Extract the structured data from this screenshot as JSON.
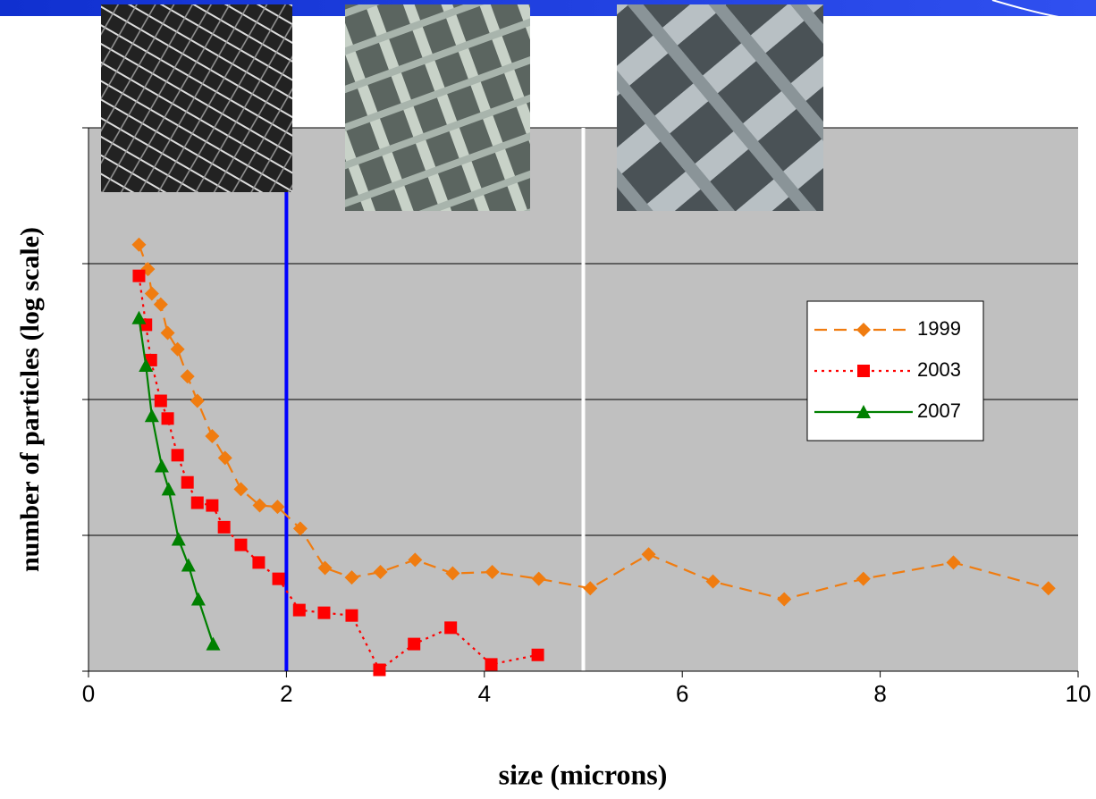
{
  "chart_data": {
    "type": "line",
    "xlabel": "size (microns)",
    "ylabel": "number of particles (log scale)",
    "xlim": [
      0,
      10
    ],
    "xticks": [
      0,
      2,
      4,
      6,
      8,
      10
    ],
    "ylim": [
      0,
      4
    ],
    "yticks": [
      0,
      1,
      2,
      3,
      4
    ],
    "grid": true,
    "legend": "right",
    "vlines": [
      {
        "x": 2,
        "color": "#0000ff"
      },
      {
        "x": 5,
        "color": "#ffffff"
      }
    ],
    "series": [
      {
        "name": "1999",
        "color": "#f07c10",
        "marker": "diamond",
        "line_style": "dashed",
        "x": [
          0.51,
          0.6,
          0.64,
          0.73,
          0.8,
          0.9,
          1.0,
          1.1,
          1.25,
          1.38,
          1.54,
          1.73,
          1.91,
          2.14,
          2.39,
          2.66,
          2.95,
          3.3,
          3.68,
          4.08,
          4.55,
          5.07,
          5.66,
          6.31,
          7.03,
          7.83,
          8.74,
          9.7
        ],
        "values": [
          3.14,
          2.96,
          2.78,
          2.7,
          2.49,
          2.37,
          2.17,
          1.99,
          1.73,
          1.57,
          1.34,
          1.22,
          1.21,
          1.05,
          0.76,
          0.69,
          0.73,
          0.82,
          0.72,
          0.73,
          0.68,
          0.61,
          0.86,
          0.66,
          0.53,
          0.68,
          0.8,
          0.61
        ]
      },
      {
        "name": "2003",
        "color": "#ff0000",
        "marker": "square",
        "line_style": "dotted",
        "x": [
          0.51,
          0.58,
          0.63,
          0.73,
          0.8,
          0.9,
          1.0,
          1.1,
          1.25,
          1.37,
          1.54,
          1.72,
          1.92,
          2.13,
          2.38,
          2.66,
          2.94,
          3.29,
          3.66,
          4.07,
          4.54
        ],
        "values": [
          2.91,
          2.55,
          2.29,
          1.99,
          1.86,
          1.59,
          1.39,
          1.24,
          1.22,
          1.06,
          0.93,
          0.8,
          0.68,
          0.45,
          0.43,
          0.41,
          0.01,
          0.2,
          0.32,
          0.05,
          0.12
        ]
      },
      {
        "name": "2007",
        "color": "#008000",
        "marker": "triangle",
        "line_style": "solid",
        "x": [
          0.51,
          0.58,
          0.64,
          0.74,
          0.81,
          0.91,
          1.01,
          1.11,
          1.26
        ],
        "values": [
          2.6,
          2.25,
          1.88,
          1.51,
          1.34,
          0.97,
          0.78,
          0.53,
          0.2
        ]
      }
    ]
  }
}
